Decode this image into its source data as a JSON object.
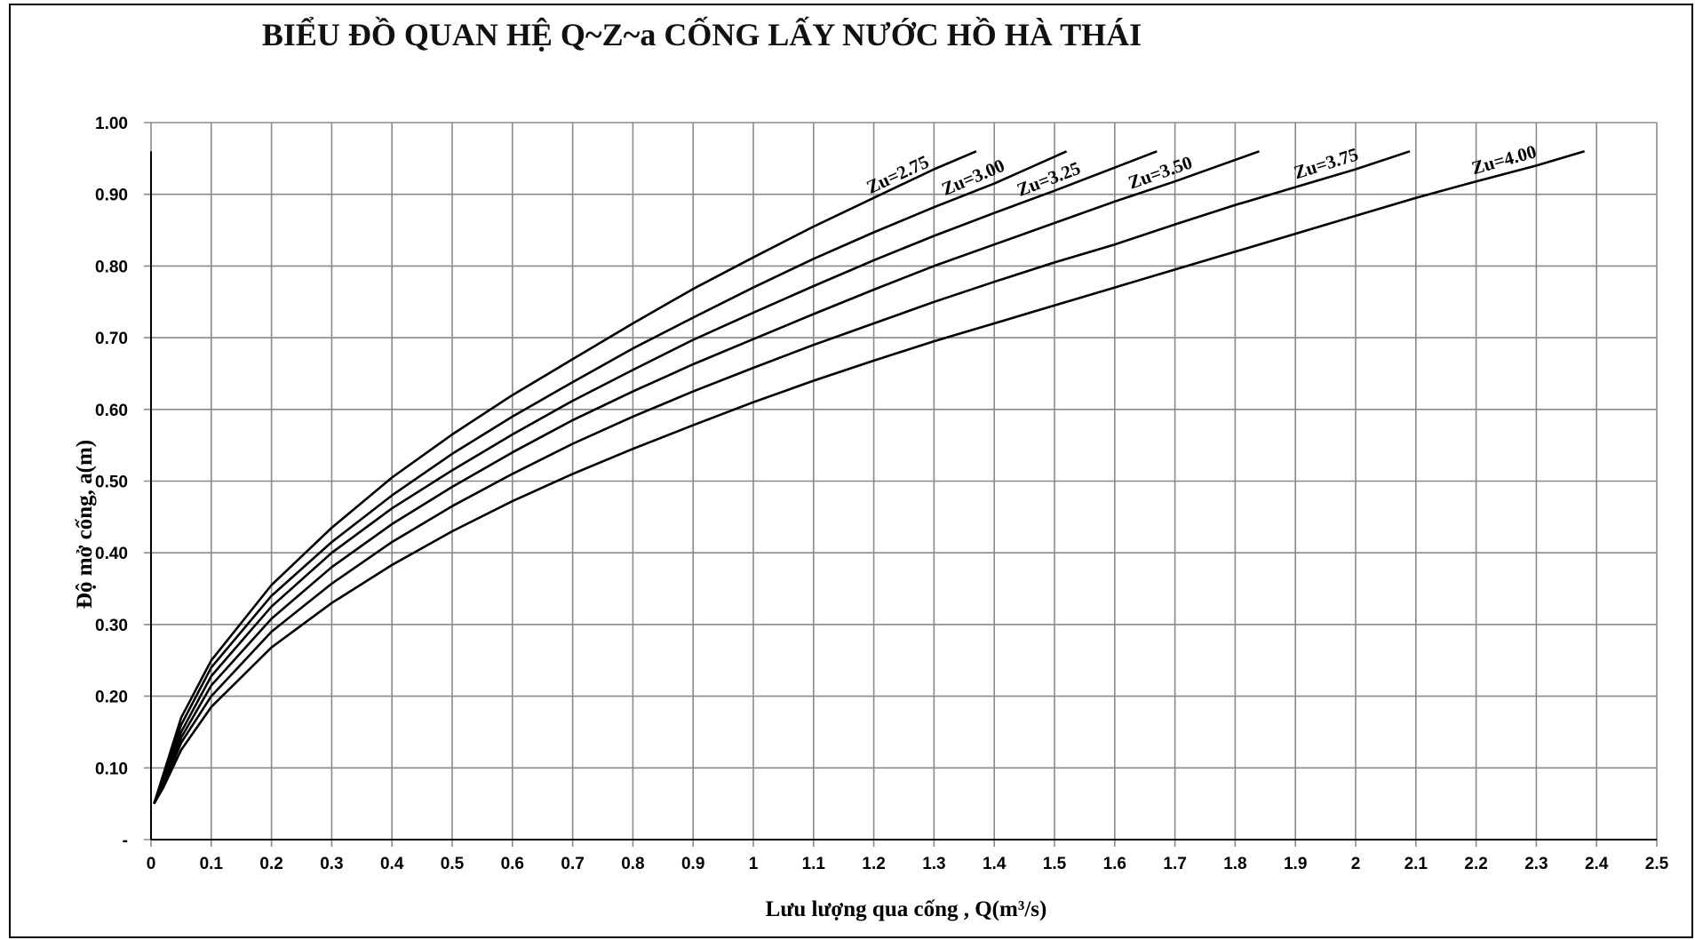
{
  "chart_data": {
    "type": "line",
    "title": "BIỂU ĐỒ QUAN HỆ Q~Z~a CỐNG LẤY NƯỚC HỒ HÀ THÁI",
    "xlabel": "Lưu lượng qua cống , Q(m³/s)",
    "ylabel": "Độ mở cống, a(m)",
    "xlim": [
      0,
      2.5
    ],
    "ylim": [
      0,
      1.0
    ],
    "grid": true,
    "x_ticks": [
      "0",
      "0.1",
      "0.2",
      "0.3",
      "0.4",
      "0.5",
      "0.6",
      "0.7",
      "0.8",
      "0.9",
      "1",
      "1.1",
      "1.2",
      "1.3",
      "1.4",
      "1.5",
      "1.6",
      "1.7",
      "1.8",
      "1.9",
      "2",
      "2.1",
      "2.2",
      "2.3",
      "2.4",
      "2.5"
    ],
    "y_ticks": [
      "-",
      "0.10",
      "0.20",
      "0.30",
      "0.40",
      "0.50",
      "0.60",
      "0.70",
      "0.80",
      "0.90",
      "1.00"
    ],
    "series": [
      {
        "name": "Zu=2.75",
        "points": [
          [
            0.005,
            0.05
          ],
          [
            0.02,
            0.09
          ],
          [
            0.05,
            0.17
          ],
          [
            0.1,
            0.25
          ],
          [
            0.2,
            0.355
          ],
          [
            0.3,
            0.435
          ],
          [
            0.4,
            0.505
          ],
          [
            0.5,
            0.565
          ],
          [
            0.6,
            0.62
          ],
          [
            0.7,
            0.67
          ],
          [
            0.8,
            0.72
          ],
          [
            0.9,
            0.768
          ],
          [
            1.0,
            0.812
          ],
          [
            1.1,
            0.855
          ],
          [
            1.2,
            0.895
          ],
          [
            1.3,
            0.935
          ],
          [
            1.37,
            0.96
          ]
        ]
      },
      {
        "name": "Zu=3.00",
        "points": [
          [
            0.005,
            0.05
          ],
          [
            0.02,
            0.085
          ],
          [
            0.05,
            0.16
          ],
          [
            0.1,
            0.24
          ],
          [
            0.2,
            0.34
          ],
          [
            0.3,
            0.415
          ],
          [
            0.4,
            0.48
          ],
          [
            0.5,
            0.538
          ],
          [
            0.6,
            0.59
          ],
          [
            0.7,
            0.638
          ],
          [
            0.8,
            0.685
          ],
          [
            0.9,
            0.728
          ],
          [
            1.0,
            0.77
          ],
          [
            1.1,
            0.81
          ],
          [
            1.2,
            0.847
          ],
          [
            1.3,
            0.882
          ],
          [
            1.4,
            0.915
          ],
          [
            1.52,
            0.96
          ]
        ]
      },
      {
        "name": "Zu=3.25",
        "points": [
          [
            0.005,
            0.05
          ],
          [
            0.02,
            0.08
          ],
          [
            0.05,
            0.15
          ],
          [
            0.1,
            0.228
          ],
          [
            0.2,
            0.325
          ],
          [
            0.3,
            0.4
          ],
          [
            0.4,
            0.462
          ],
          [
            0.5,
            0.515
          ],
          [
            0.6,
            0.565
          ],
          [
            0.7,
            0.612
          ],
          [
            0.8,
            0.655
          ],
          [
            0.9,
            0.697
          ],
          [
            1.0,
            0.735
          ],
          [
            1.1,
            0.772
          ],
          [
            1.2,
            0.808
          ],
          [
            1.3,
            0.842
          ],
          [
            1.4,
            0.874
          ],
          [
            1.5,
            0.905
          ],
          [
            1.67,
            0.96
          ]
        ]
      },
      {
        "name": "Zu=3.50",
        "points": [
          [
            0.005,
            0.05
          ],
          [
            0.02,
            0.078
          ],
          [
            0.05,
            0.142
          ],
          [
            0.1,
            0.215
          ],
          [
            0.2,
            0.308
          ],
          [
            0.3,
            0.38
          ],
          [
            0.4,
            0.44
          ],
          [
            0.5,
            0.492
          ],
          [
            0.6,
            0.54
          ],
          [
            0.7,
            0.585
          ],
          [
            0.8,
            0.625
          ],
          [
            0.9,
            0.663
          ],
          [
            1.0,
            0.698
          ],
          [
            1.1,
            0.733
          ],
          [
            1.2,
            0.767
          ],
          [
            1.3,
            0.8
          ],
          [
            1.4,
            0.83
          ],
          [
            1.5,
            0.86
          ],
          [
            1.6,
            0.89
          ],
          [
            1.7,
            0.918
          ],
          [
            1.84,
            0.96
          ]
        ]
      },
      {
        "name": "Zu=3.75",
        "points": [
          [
            0.005,
            0.05
          ],
          [
            0.02,
            0.075
          ],
          [
            0.05,
            0.135
          ],
          [
            0.1,
            0.2
          ],
          [
            0.2,
            0.29
          ],
          [
            0.3,
            0.357
          ],
          [
            0.4,
            0.415
          ],
          [
            0.5,
            0.465
          ],
          [
            0.6,
            0.51
          ],
          [
            0.7,
            0.552
          ],
          [
            0.8,
            0.59
          ],
          [
            0.9,
            0.625
          ],
          [
            1.0,
            0.658
          ],
          [
            1.1,
            0.69
          ],
          [
            1.2,
            0.72
          ],
          [
            1.3,
            0.75
          ],
          [
            1.4,
            0.778
          ],
          [
            1.5,
            0.805
          ],
          [
            1.6,
            0.83
          ],
          [
            1.7,
            0.858
          ],
          [
            1.8,
            0.885
          ],
          [
            1.9,
            0.91
          ],
          [
            2.0,
            0.935
          ],
          [
            2.09,
            0.96
          ]
        ]
      },
      {
        "name": "Zu=4.00",
        "points": [
          [
            0.005,
            0.05
          ],
          [
            0.02,
            0.072
          ],
          [
            0.05,
            0.125
          ],
          [
            0.1,
            0.185
          ],
          [
            0.2,
            0.268
          ],
          [
            0.3,
            0.33
          ],
          [
            0.4,
            0.383
          ],
          [
            0.5,
            0.43
          ],
          [
            0.6,
            0.472
          ],
          [
            0.7,
            0.51
          ],
          [
            0.8,
            0.545
          ],
          [
            0.9,
            0.578
          ],
          [
            1.0,
            0.61
          ],
          [
            1.1,
            0.64
          ],
          [
            1.2,
            0.668
          ],
          [
            1.3,
            0.695
          ],
          [
            1.4,
            0.72
          ],
          [
            1.5,
            0.745
          ],
          [
            1.6,
            0.77
          ],
          [
            1.7,
            0.795
          ],
          [
            1.8,
            0.82
          ],
          [
            1.9,
            0.845
          ],
          [
            2.0,
            0.87
          ],
          [
            2.1,
            0.895
          ],
          [
            2.2,
            0.918
          ],
          [
            2.3,
            0.94
          ],
          [
            2.38,
            0.96
          ]
        ]
      }
    ]
  }
}
